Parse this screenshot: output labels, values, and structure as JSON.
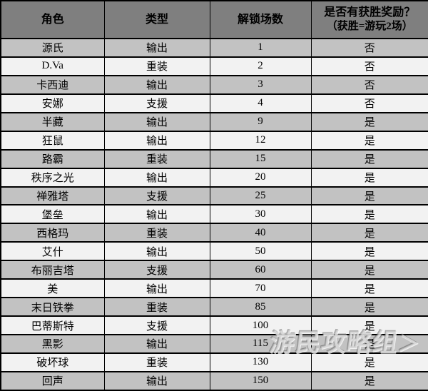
{
  "colors": {
    "header_bg": "#7f7f7f",
    "row_dark": "#c2c2c2",
    "row_light": "#f2f2f2",
    "border": "#000000",
    "text": "#000000"
  },
  "watermark": {
    "text": "游民攻略组",
    "arrow": "＞"
  },
  "table": {
    "headers": [
      {
        "label": "角色"
      },
      {
        "label": "类型"
      },
      {
        "label": "解锁场数"
      },
      {
        "label": "是否有获胜奖励？",
        "sub": "（获胜=游玩2场）"
      }
    ],
    "rows": [
      {
        "name": "源氏",
        "type": "输出",
        "matches": "1",
        "reward": "否"
      },
      {
        "name": "D.Va",
        "type": "重装",
        "matches": "2",
        "reward": "否"
      },
      {
        "name": "卡西迪",
        "type": "输出",
        "matches": "3",
        "reward": "否"
      },
      {
        "name": "安娜",
        "type": "支援",
        "matches": "4",
        "reward": "否"
      },
      {
        "name": "半藏",
        "type": "输出",
        "matches": "9",
        "reward": "是"
      },
      {
        "name": "狂鼠",
        "type": "输出",
        "matches": "12",
        "reward": "是"
      },
      {
        "name": "路霸",
        "type": "重装",
        "matches": "15",
        "reward": "是"
      },
      {
        "name": "秩序之光",
        "type": "输出",
        "matches": "20",
        "reward": "是"
      },
      {
        "name": "禅雅塔",
        "type": "支援",
        "matches": "25",
        "reward": "是"
      },
      {
        "name": "堡垒",
        "type": "输出",
        "matches": "30",
        "reward": "是"
      },
      {
        "name": "西格玛",
        "type": "重装",
        "matches": "40",
        "reward": "是"
      },
      {
        "name": "艾什",
        "type": "输出",
        "matches": "50",
        "reward": "是"
      },
      {
        "name": "布丽吉塔",
        "type": "支援",
        "matches": "60",
        "reward": "是"
      },
      {
        "name": "美",
        "type": "输出",
        "matches": "70",
        "reward": "是"
      },
      {
        "name": "末日铁拳",
        "type": "重装",
        "matches": "85",
        "reward": "是"
      },
      {
        "name": "巴蒂斯特",
        "type": "支援",
        "matches": "100",
        "reward": "是"
      },
      {
        "name": "黑影",
        "type": "输出",
        "matches": "115",
        "reward": "是"
      },
      {
        "name": "破坏球",
        "type": "重装",
        "matches": "130",
        "reward": "是"
      },
      {
        "name": "回声",
        "type": "输出",
        "matches": "150",
        "reward": "是"
      }
    ]
  },
  "chart_data": {
    "type": "table",
    "title": "",
    "columns": [
      "角色",
      "类型",
      "解锁场数",
      "是否有获胜奖励？（获胜=游玩2场）"
    ],
    "rows": [
      [
        "源氏",
        "输出",
        1,
        "否"
      ],
      [
        "D.Va",
        "重装",
        2,
        "否"
      ],
      [
        "卡西迪",
        "输出",
        3,
        "否"
      ],
      [
        "安娜",
        "支援",
        4,
        "否"
      ],
      [
        "半藏",
        "输出",
        9,
        "是"
      ],
      [
        "狂鼠",
        "输出",
        12,
        "是"
      ],
      [
        "路霸",
        "重装",
        15,
        "是"
      ],
      [
        "秩序之光",
        "输出",
        20,
        "是"
      ],
      [
        "禅雅塔",
        "支援",
        25,
        "是"
      ],
      [
        "堡垒",
        "输出",
        30,
        "是"
      ],
      [
        "西格玛",
        "重装",
        40,
        "是"
      ],
      [
        "艾什",
        "输出",
        50,
        "是"
      ],
      [
        "布丽吉塔",
        "支援",
        60,
        "是"
      ],
      [
        "美",
        "输出",
        70,
        "是"
      ],
      [
        "末日铁拳",
        "重装",
        85,
        "是"
      ],
      [
        "巴蒂斯特",
        "支援",
        100,
        "是"
      ],
      [
        "黑影",
        "输出",
        115,
        "是"
      ],
      [
        "破坏球",
        "重装",
        130,
        "是"
      ],
      [
        "回声",
        "输出",
        150,
        "是"
      ]
    ]
  }
}
